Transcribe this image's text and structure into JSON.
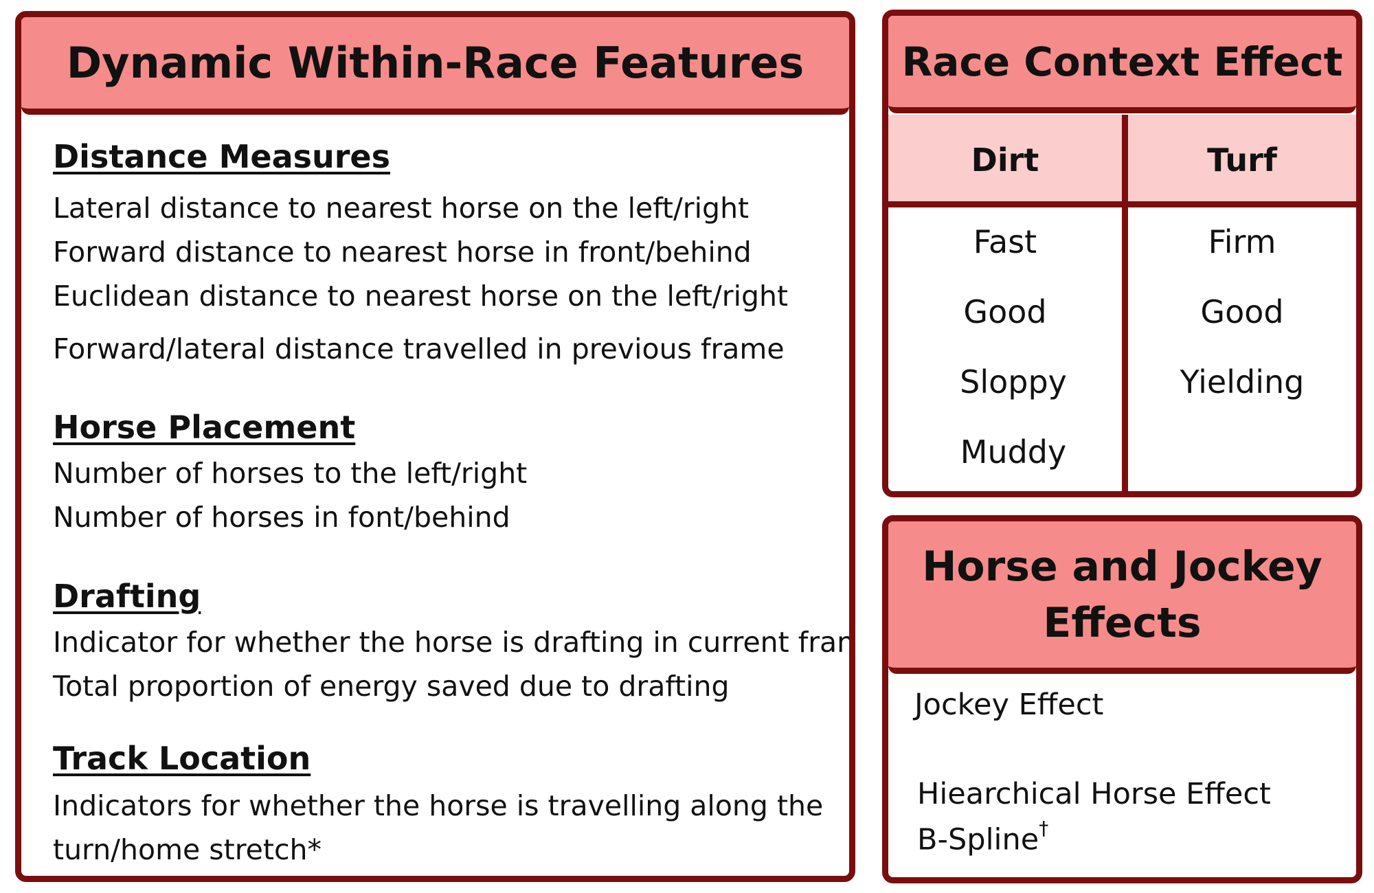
{
  "dynamic": {
    "title": "Dynamic Within-Race Features",
    "sections": [
      {
        "title": "Distance Measures",
        "items": [
          "Lateral distance to nearest horse on the left/right",
          "Forward distance to nearest horse in front/behind",
          "Euclidean distance to nearest horse on the left/right",
          "Forward/lateral distance travelled in previous frame"
        ]
      },
      {
        "title": "Horse Placement",
        "items": [
          "Number of horses to the left/right",
          "Number of horses in font/behind"
        ]
      },
      {
        "title": "Drafting",
        "items": [
          "Indicator for whether the horse is drafting in current frame",
          "Total proportion of energy saved due to drafting"
        ]
      },
      {
        "title": "Track Location",
        "items": [
          "Indicators for whether the horse is travelling along the",
          "turn/home stretch*"
        ]
      }
    ]
  },
  "context": {
    "title": "Race Context Effect",
    "columns": [
      {
        "header": "Dirt",
        "values": [
          "Fast",
          "Good",
          "Sloppy",
          "Muddy"
        ]
      },
      {
        "header": "Turf",
        "values": [
          "Firm",
          "Good",
          "Yielding"
        ]
      }
    ]
  },
  "horse_jockey": {
    "title_line1": "Horse and Jockey",
    "title_line2": "Effects",
    "items": [
      "Jockey Effect",
      "Hiearchical Horse Effect",
      "B-Spline"
    ],
    "superscript": "†"
  },
  "colors": {
    "border": "#7a0e0e",
    "header_fill": "#f68b8b",
    "subheader_fill": "#fbcdcd"
  }
}
